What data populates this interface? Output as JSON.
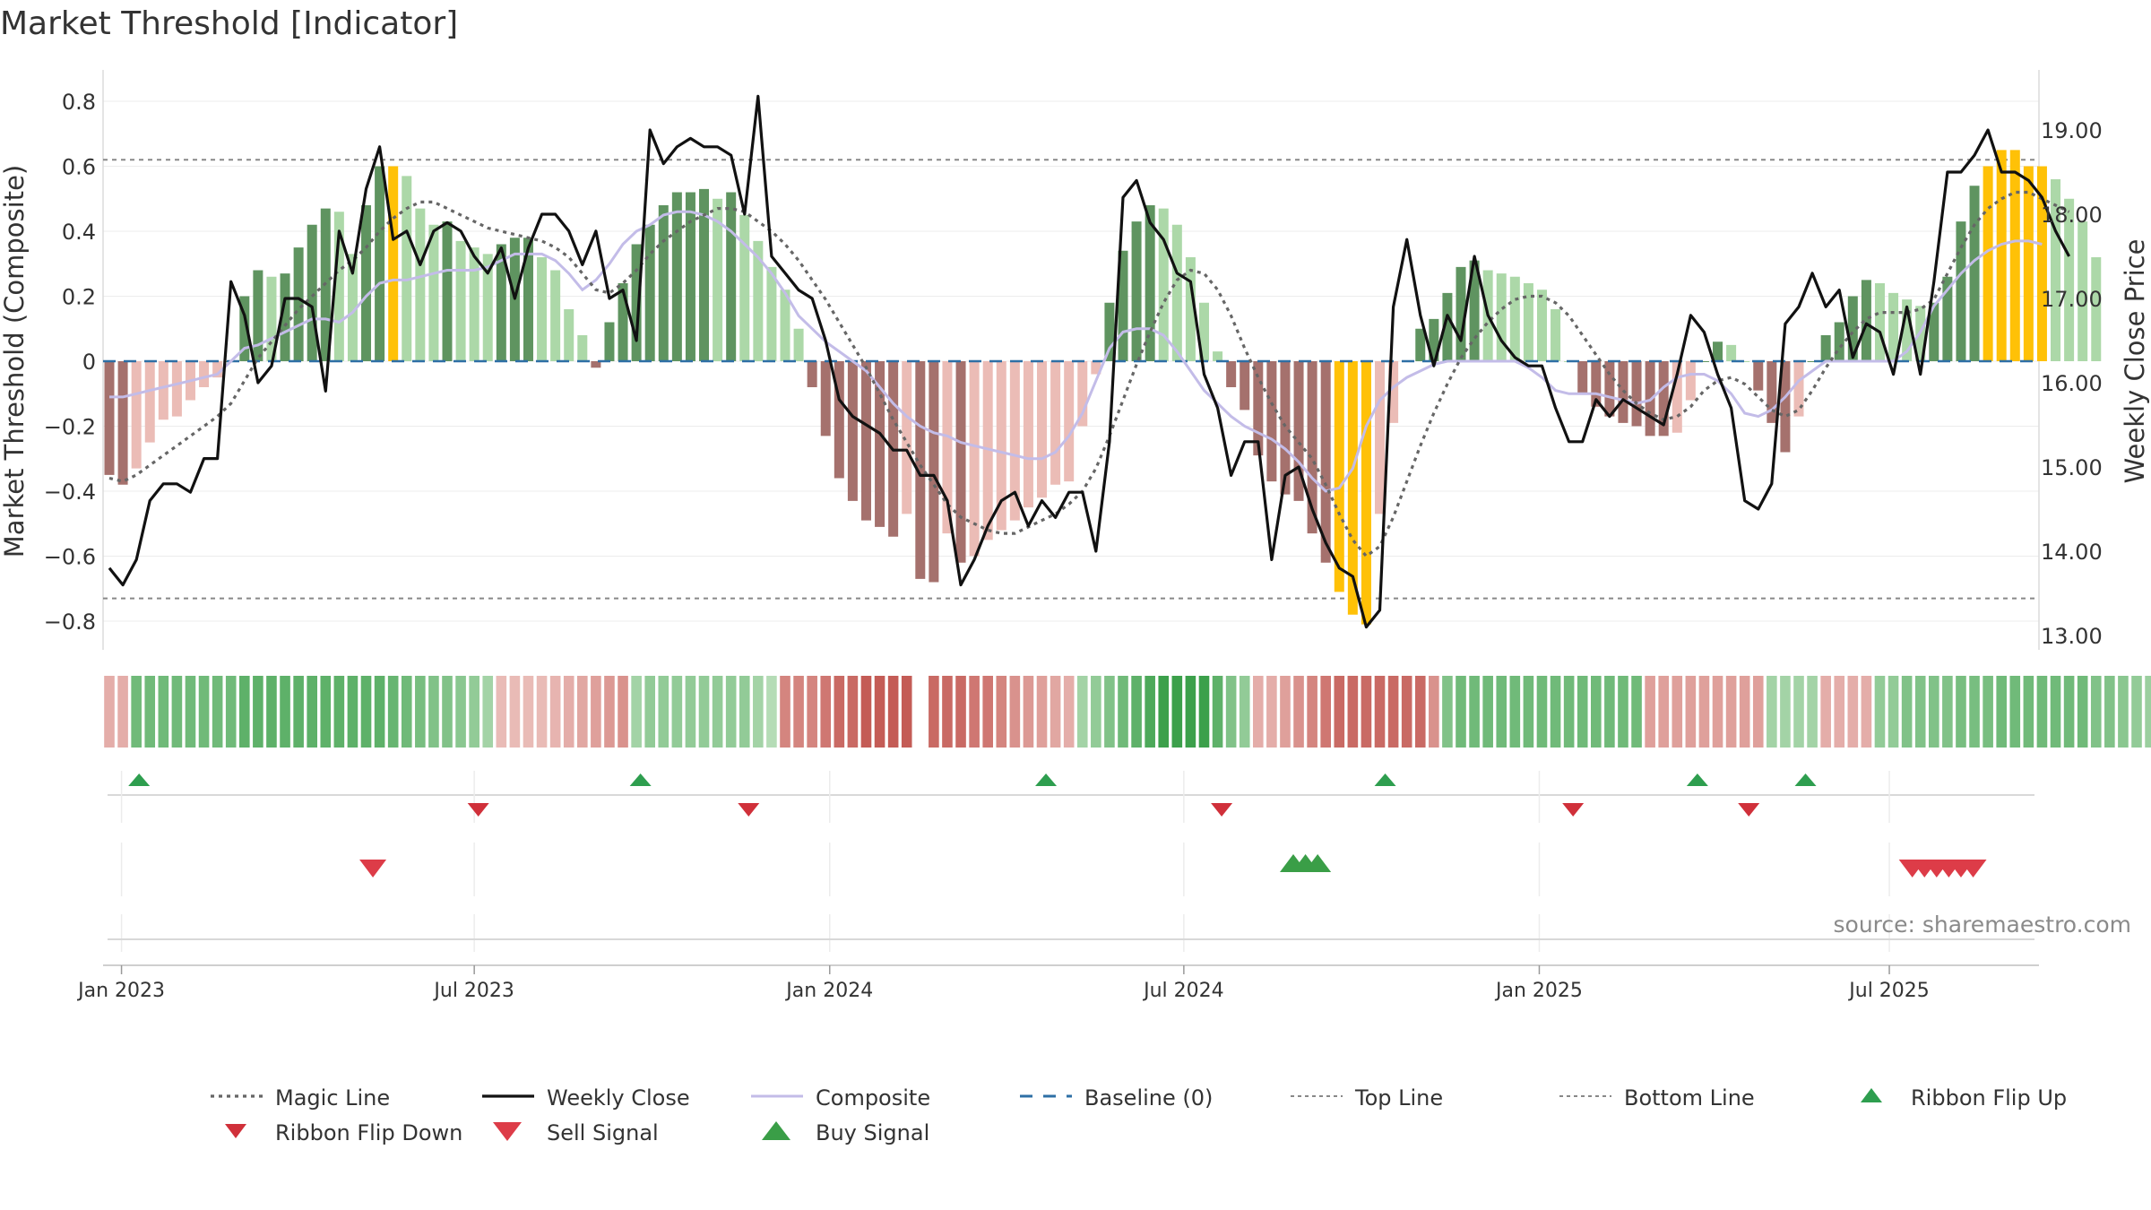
{
  "chart_data": {
    "type": "bar",
    "title": "Market Threshold [Indicator]",
    "ylabel": "Market Threshold (Composite)",
    "y2label": "Weekly Close Price",
    "ylim": [
      -0.9,
      0.9
    ],
    "y2lim": [
      12.8,
      19.6
    ],
    "yticks": [
      0.8,
      0.6,
      0.4,
      0.2,
      0,
      -0.2,
      -0.4,
      -0.6,
      -0.8
    ],
    "yticklabels": [
      "0.8",
      "0.6",
      "0.4",
      "0.2",
      "0",
      "−0.2",
      "−0.4",
      "−0.6",
      "−0.8"
    ],
    "y2ticks": [
      19,
      18,
      17,
      16,
      15,
      14,
      13
    ],
    "y2ticklabels": [
      "19.00",
      "18.00",
      "17.00",
      "16.00",
      "15.00",
      "14.00",
      "13.00"
    ],
    "top_line": 0.62,
    "bottom_line": -0.73,
    "baseline": 0,
    "x_range_weeks": [
      -1.5,
      145.5
    ],
    "xticks": [
      {
        "week": 0.9,
        "label": "Jan 2023"
      },
      {
        "week": 27.0,
        "label": "Jul 2023"
      },
      {
        "week": 53.3,
        "label": "Jan 2024"
      },
      {
        "week": 79.5,
        "label": "Jul 2024"
      },
      {
        "week": 105.8,
        "label": "Jan 2025"
      },
      {
        "week": 131.7,
        "label": "Jul 2025"
      }
    ],
    "composite_bars": [
      -0.35,
      -0.38,
      -0.33,
      -0.25,
      -0.18,
      -0.17,
      -0.12,
      -0.08,
      -0.05,
      0.0,
      0.2,
      0.28,
      0.26,
      0.27,
      0.35,
      0.42,
      0.47,
      0.46,
      0.33,
      0.48,
      0.6,
      0.6,
      0.57,
      0.47,
      0.42,
      0.43,
      0.37,
      0.35,
      0.33,
      0.36,
      0.38,
      0.38,
      0.32,
      0.28,
      0.16,
      0.08,
      -0.02,
      0.12,
      0.24,
      0.36,
      0.42,
      0.48,
      0.52,
      0.52,
      0.53,
      0.5,
      0.52,
      0.45,
      0.37,
      0.29,
      0.22,
      0.1,
      -0.08,
      -0.23,
      -0.36,
      -0.43,
      -0.49,
      -0.51,
      -0.54,
      -0.47,
      -0.67,
      -0.68,
      -0.53,
      -0.62,
      -0.6,
      -0.55,
      -0.52,
      -0.49,
      -0.45,
      -0.42,
      -0.38,
      -0.37,
      -0.2,
      -0.04,
      0.18,
      0.34,
      0.43,
      0.48,
      0.47,
      0.42,
      0.32,
      0.18,
      0.03,
      -0.08,
      -0.15,
      -0.29,
      -0.37,
      -0.41,
      -0.43,
      -0.53,
      -0.62,
      -0.71,
      -0.78,
      -0.81,
      -0.47,
      -0.19,
      0.0,
      0.1,
      0.13,
      0.21,
      0.29,
      0.31,
      0.28,
      0.27,
      0.26,
      0.24,
      0.22,
      0.16,
      0.0,
      -0.1,
      -0.14,
      -0.17,
      -0.19,
      -0.2,
      -0.23,
      -0.23,
      -0.22,
      -0.12,
      0.0,
      0.06,
      0.05,
      0.0,
      -0.09,
      -0.19,
      -0.28,
      -0.17,
      0.0,
      0.08,
      0.12,
      0.2,
      0.25,
      0.24,
      0.21,
      0.19,
      0.17,
      0.18,
      0.26,
      0.43,
      0.54,
      0.6,
      0.65,
      0.65,
      0.6,
      0.6,
      0.56,
      0.5,
      0.43,
      0.32
    ],
    "weekly_close": [
      13.8,
      13.6,
      13.9,
      14.6,
      14.8,
      14.8,
      14.7,
      15.1,
      15.1,
      17.2,
      16.8,
      16.0,
      16.2,
      17.0,
      17.0,
      16.9,
      15.9,
      17.8,
      17.3,
      18.3,
      18.8,
      17.7,
      17.8,
      17.4,
      17.8,
      17.9,
      17.8,
      17.5,
      17.3,
      17.6,
      17.0,
      17.6,
      18.0,
      18.0,
      17.8,
      17.4,
      17.8,
      17.0,
      17.1,
      16.5,
      19.0,
      18.6,
      18.8,
      18.9,
      18.8,
      18.8,
      18.7,
      18.0,
      19.4,
      17.5,
      17.3,
      17.1,
      17.0,
      16.5,
      15.8,
      15.6,
      15.5,
      15.4,
      15.2,
      15.2,
      14.9,
      14.9,
      14.6,
      13.6,
      13.9,
      14.3,
      14.6,
      14.7,
      14.3,
      14.6,
      14.4,
      14.7,
      14.7,
      14.0,
      15.3,
      18.2,
      18.4,
      17.9,
      17.7,
      17.3,
      17.2,
      16.1,
      15.7,
      14.9,
      15.3,
      15.3,
      13.9,
      14.9,
      15.0,
      14.5,
      14.1,
      13.8,
      13.7,
      13.1,
      13.3,
      16.9,
      17.7,
      16.8,
      16.2,
      16.8,
      16.5,
      17.5,
      16.8,
      16.5,
      16.3,
      16.2,
      16.2,
      15.7,
      15.3,
      15.3,
      15.8,
      15.6,
      15.8,
      15.7,
      15.6,
      15.5,
      16.1,
      16.8,
      16.6,
      16.1,
      15.7,
      14.6,
      14.5,
      14.8,
      16.7,
      16.9,
      17.3,
      16.9,
      17.1,
      16.3,
      16.7,
      16.6,
      16.1,
      16.9,
      16.1,
      17.2,
      18.5,
      18.5,
      18.7,
      19.0,
      18.5,
      18.5,
      18.4,
      18.2,
      17.8,
      17.5
    ],
    "magic_line": [
      -0.36,
      -0.37,
      -0.35,
      -0.32,
      -0.29,
      -0.26,
      -0.23,
      -0.2,
      -0.17,
      -0.13,
      -0.06,
      0.01,
      0.06,
      0.11,
      0.16,
      0.2,
      0.24,
      0.28,
      0.31,
      0.35,
      0.4,
      0.44,
      0.47,
      0.49,
      0.49,
      0.47,
      0.45,
      0.43,
      0.41,
      0.4,
      0.39,
      0.38,
      0.37,
      0.35,
      0.32,
      0.27,
      0.22,
      0.21,
      0.24,
      0.28,
      0.33,
      0.37,
      0.4,
      0.43,
      0.45,
      0.47,
      0.47,
      0.46,
      0.43,
      0.4,
      0.36,
      0.31,
      0.25,
      0.19,
      0.12,
      0.05,
      -0.02,
      -0.1,
      -0.18,
      -0.25,
      -0.32,
      -0.38,
      -0.44,
      -0.48,
      -0.5,
      -0.52,
      -0.53,
      -0.53,
      -0.51,
      -0.49,
      -0.47,
      -0.44,
      -0.4,
      -0.33,
      -0.23,
      -0.12,
      -0.01,
      0.09,
      0.18,
      0.25,
      0.28,
      0.27,
      0.22,
      0.14,
      0.04,
      -0.05,
      -0.13,
      -0.2,
      -0.25,
      -0.3,
      -0.38,
      -0.47,
      -0.55,
      -0.6,
      -0.57,
      -0.48,
      -0.37,
      -0.26,
      -0.16,
      -0.07,
      0.01,
      0.07,
      0.12,
      0.16,
      0.19,
      0.2,
      0.2,
      0.18,
      0.14,
      0.08,
      0.02,
      -0.04,
      -0.09,
      -0.13,
      -0.16,
      -0.18,
      -0.17,
      -0.14,
      -0.09,
      -0.06,
      -0.05,
      -0.07,
      -0.11,
      -0.15,
      -0.17,
      -0.15,
      -0.09,
      -0.02,
      0.04,
      0.09,
      0.13,
      0.15,
      0.15,
      0.15,
      0.16,
      0.19,
      0.27,
      0.35,
      0.42,
      0.47,
      0.5,
      0.52,
      0.52,
      0.5,
      0.48,
      0.46
    ],
    "composite_line": [
      -0.11,
      -0.11,
      -0.1,
      -0.09,
      -0.08,
      -0.07,
      -0.06,
      -0.05,
      -0.04,
      0.0,
      0.04,
      0.05,
      0.07,
      0.09,
      0.11,
      0.13,
      0.13,
      0.12,
      0.15,
      0.2,
      0.24,
      0.25,
      0.25,
      0.26,
      0.27,
      0.28,
      0.28,
      0.28,
      0.29,
      0.31,
      0.33,
      0.33,
      0.33,
      0.31,
      0.27,
      0.22,
      0.25,
      0.3,
      0.36,
      0.4,
      0.42,
      0.45,
      0.46,
      0.46,
      0.45,
      0.43,
      0.4,
      0.36,
      0.32,
      0.27,
      0.21,
      0.14,
      0.1,
      0.06,
      0.03,
      0.0,
      -0.03,
      -0.08,
      -0.13,
      -0.17,
      -0.2,
      -0.22,
      -0.23,
      -0.25,
      -0.26,
      -0.27,
      -0.28,
      -0.29,
      -0.3,
      -0.3,
      -0.28,
      -0.23,
      -0.16,
      -0.06,
      0.04,
      0.09,
      0.1,
      0.1,
      0.08,
      0.03,
      -0.03,
      -0.09,
      -0.13,
      -0.17,
      -0.2,
      -0.22,
      -0.24,
      -0.27,
      -0.31,
      -0.36,
      -0.4,
      -0.39,
      -0.33,
      -0.2,
      -0.12,
      -0.08,
      -0.05,
      -0.03,
      -0.01,
      0.0,
      0.0,
      0.0,
      0.0,
      0.0,
      0.0,
      -0.02,
      -0.05,
      -0.09,
      -0.1,
      -0.1,
      -0.1,
      -0.11,
      -0.12,
      -0.13,
      -0.12,
      -0.08,
      -0.05,
      -0.04,
      -0.04,
      -0.06,
      -0.1,
      -0.16,
      -0.17,
      -0.15,
      -0.11,
      -0.06,
      -0.03,
      0.0,
      0.0,
      0.0,
      0.0,
      0.0,
      0.0,
      0.03,
      0.09,
      0.17,
      0.22,
      0.27,
      0.31,
      0.34,
      0.36,
      0.37,
      0.37,
      0.36
    ],
    "ribbon": [
      -0.3,
      -0.3,
      0.6,
      0.6,
      0.6,
      0.6,
      0.6,
      0.6,
      0.6,
      0.6,
      0.7,
      0.7,
      0.7,
      0.7,
      0.7,
      0.7,
      0.7,
      0.7,
      0.7,
      0.7,
      0.7,
      0.65,
      0.6,
      0.55,
      0.5,
      0.5,
      0.45,
      0.4,
      0.3,
      -0.2,
      -0.2,
      -0.2,
      -0.2,
      -0.25,
      -0.3,
      -0.35,
      -0.4,
      -0.45,
      -0.5,
      0.3,
      0.4,
      0.4,
      0.4,
      0.4,
      0.4,
      0.4,
      0.4,
      0.4,
      0.3,
      0.2,
      -0.6,
      -0.6,
      -0.6,
      -0.7,
      -0.8,
      -0.8,
      -0.9,
      -0.9,
      -0.9,
      -0.9,
      null,
      -0.8,
      -0.8,
      -0.8,
      -0.7,
      -0.7,
      -0.6,
      -0.5,
      -0.45,
      -0.4,
      -0.35,
      -0.3,
      0.3,
      0.4,
      0.5,
      0.6,
      0.7,
      0.8,
      0.9,
      0.9,
      0.9,
      0.9,
      0.7,
      0.5,
      0.4,
      -0.3,
      -0.3,
      -0.4,
      -0.5,
      -0.6,
      -0.7,
      -0.8,
      -0.8,
      -0.8,
      -0.8,
      -0.8,
      -0.8,
      -0.8,
      -0.5,
      0.5,
      0.6,
      0.6,
      0.6,
      0.6,
      0.6,
      0.6,
      0.6,
      0.6,
      0.6,
      0.6,
      0.6,
      0.6,
      0.6,
      0.6,
      -0.4,
      -0.4,
      -0.4,
      -0.4,
      -0.4,
      -0.4,
      -0.4,
      -0.4,
      -0.4,
      0.3,
      0.3,
      0.3,
      0.3,
      -0.3,
      -0.3,
      -0.3,
      -0.3,
      0.4,
      0.4,
      0.5,
      0.5,
      0.5,
      0.5,
      0.55,
      0.55,
      0.55,
      0.6,
      0.6,
      0.6,
      0.6,
      0.6,
      0.6,
      0.6,
      0.5,
      0.5,
      0.45,
      0.4,
      0.35
    ],
    "ribbon_flip_up_weeks": [
      2.2,
      39.3,
      69.3,
      94.4,
      117.5,
      125.5
    ],
    "ribbon_flip_down_weeks": [
      27.3,
      47.3,
      82.3,
      108.3,
      121.3
    ],
    "sell_signal_weeks": [
      19.5,
      133.4,
      134.3,
      135.2,
      136.1,
      137.0,
      137.9
    ],
    "buy_signal_weeks": [
      87.6,
      88.5,
      89.4
    ],
    "legend": [
      {
        "key": "magic",
        "label": "Magic Line"
      },
      {
        "key": "close",
        "label": "Weekly Close"
      },
      {
        "key": "composite",
        "label": "Composite"
      },
      {
        "key": "baseline",
        "label": "Baseline (0)"
      },
      {
        "key": "top",
        "label": "Top Line"
      },
      {
        "key": "bottom",
        "label": "Bottom Line"
      },
      {
        "key": "flipup",
        "label": "Ribbon Flip Up"
      },
      {
        "key": "flipdown",
        "label": "Ribbon Flip Down"
      },
      {
        "key": "sell",
        "label": "Sell Signal"
      },
      {
        "key": "buy",
        "label": "Buy Signal"
      }
    ],
    "source": "source: sharemaestro.com",
    "colors": {
      "dark_green": "#5f9460",
      "mid_green": "#8bc08a",
      "light_green": "#acd8a8",
      "dark_red": "#a5716d",
      "light_red": "#ebbcb6",
      "yellow": "#ffc107",
      "close": "#111111",
      "magic": "#666666",
      "composite": "#c3bce8",
      "baseline": "#2e6fa5",
      "threshold": "#888888",
      "flip_up": "#2e9e4f",
      "flip_down": "#d0303a",
      "sell": "#dd3c48",
      "buy": "#3a9e47"
    }
  }
}
